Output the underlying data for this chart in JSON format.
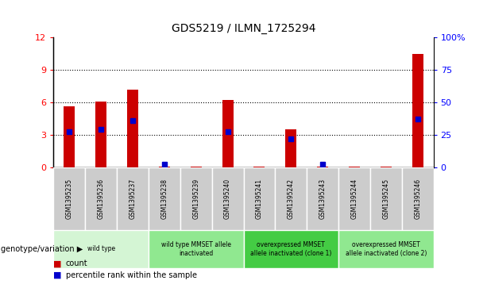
{
  "title": "GDS5219 / ILMN_1725294",
  "samples": [
    "GSM1395235",
    "GSM1395236",
    "GSM1395237",
    "GSM1395238",
    "GSM1395239",
    "GSM1395240",
    "GSM1395241",
    "GSM1395242",
    "GSM1395243",
    "GSM1395244",
    "GSM1395245",
    "GSM1395246"
  ],
  "count_values": [
    5.6,
    6.1,
    7.2,
    0.05,
    0.05,
    6.2,
    0.05,
    3.5,
    0.05,
    0.05,
    0.05,
    10.5
  ],
  "percentile_values": [
    27,
    29,
    36,
    2,
    0,
    27,
    0,
    22,
    2,
    0,
    0,
    37
  ],
  "ylim_left": [
    0,
    12
  ],
  "ylim_right": [
    0,
    100
  ],
  "yticks_left": [
    0,
    3,
    6,
    9,
    12
  ],
  "yticks_right": [
    0,
    25,
    50,
    75,
    100
  ],
  "yticklabels_right": [
    "0",
    "25",
    "50",
    "75",
    "100%"
  ],
  "groups": [
    {
      "label": "wild type",
      "start": 0,
      "end": 3,
      "color": "#d4f5d4"
    },
    {
      "label": "wild type MMSET allele\ninactivated",
      "start": 3,
      "end": 6,
      "color": "#90e890"
    },
    {
      "label": "overexpressed MMSET\nallele inactivated (clone 1)",
      "start": 6,
      "end": 9,
      "color": "#44cc44"
    },
    {
      "label": "overexpressed MMSET\nallele inactivated (clone 2)",
      "start": 9,
      "end": 12,
      "color": "#90e890"
    }
  ],
  "bar_color": "#cc0000",
  "percentile_color": "#0000cc",
  "bar_width": 0.35,
  "sample_bg_color": "#cccccc",
  "legend_count_color": "#cc0000",
  "legend_pct_color": "#0000cc",
  "genotype_label": "genotype/variation",
  "xlabel_count": "count",
  "xlabel_pct": "percentile rank within the sample"
}
